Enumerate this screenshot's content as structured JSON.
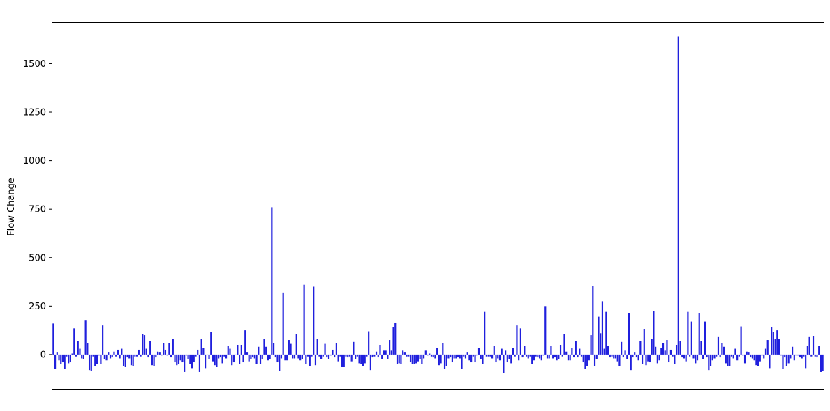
{
  "chart_data": {
    "type": "bar",
    "title": "",
    "xlabel": "",
    "ylabel": "Flow Change",
    "ylim": [
      -180,
      1710
    ],
    "yticks": [
      0,
      250,
      500,
      750,
      1000,
      1250,
      1500
    ],
    "x_ticks_visible": false,
    "grid": false,
    "bar_color": "#1f1fdd",
    "series": [
      {
        "values": [
          160,
          -75,
          10,
          -30,
          -50,
          -40,
          -75,
          -10,
          -45,
          -40,
          5,
          135,
          -10,
          70,
          30,
          -20,
          -25,
          175,
          60,
          -80,
          -85,
          -10,
          -60,
          -50,
          -5,
          -50,
          150,
          -25,
          -30,
          10,
          -20,
          -15,
          15,
          -10,
          25,
          -20,
          30,
          -60,
          -65,
          -15,
          -20,
          -55,
          -60,
          -10,
          -10,
          25,
          -10,
          105,
          100,
          30,
          -15,
          70,
          -55,
          -60,
          -15,
          15,
          10,
          -5,
          60,
          25,
          -5,
          60,
          -15,
          80,
          -40,
          -55,
          -50,
          -30,
          -40,
          -90,
          -5,
          -25,
          -50,
          -70,
          -40,
          -10,
          25,
          -90,
          80,
          35,
          -70,
          0,
          -25,
          115,
          -35,
          -55,
          -65,
          -20,
          -15,
          -45,
          -10,
          -20,
          45,
          30,
          -55,
          -40,
          0,
          50,
          -50,
          50,
          -40,
          125,
          10,
          -35,
          -25,
          -15,
          -20,
          -50,
          40,
          -50,
          -25,
          80,
          40,
          -30,
          -25,
          760,
          60,
          -15,
          -40,
          -85,
          -20,
          320,
          -30,
          -30,
          75,
          55,
          -20,
          -20,
          105,
          -20,
          -30,
          -25,
          360,
          -50,
          -10,
          -60,
          -10,
          350,
          -55,
          80,
          -10,
          -25,
          -10,
          55,
          -15,
          -25,
          -5,
          25,
          -15,
          60,
          -35,
          -10,
          -65,
          -65,
          -10,
          -15,
          -10,
          -35,
          65,
          -25,
          -10,
          -45,
          -50,
          -60,
          -45,
          -10,
          120,
          -80,
          -15,
          -10,
          15,
          -15,
          50,
          -25,
          20,
          20,
          -25,
          75,
          20,
          140,
          165,
          -50,
          -45,
          -50,
          20,
          10,
          -10,
          -10,
          -40,
          -50,
          -50,
          -45,
          -35,
          -25,
          -50,
          -20,
          20,
          -5,
          5,
          -10,
          -15,
          -20,
          35,
          -55,
          -45,
          60,
          -75,
          -60,
          -20,
          -15,
          -40,
          -20,
          -20,
          -15,
          -20,
          -75,
          -10,
          -20,
          10,
          -30,
          -40,
          -10,
          -40,
          -5,
          35,
          -25,
          -50,
          220,
          -10,
          -10,
          -10,
          -20,
          45,
          -40,
          -20,
          -30,
          30,
          -95,
          20,
          -40,
          -25,
          -45,
          35,
          -10,
          150,
          -30,
          135,
          -15,
          45,
          -10,
          -20,
          -10,
          -50,
          -30,
          -10,
          -15,
          -20,
          -30,
          -5,
          250,
          -20,
          -20,
          45,
          -20,
          -15,
          -30,
          -25,
          50,
          -10,
          105,
          15,
          -30,
          -30,
          35,
          -15,
          70,
          -15,
          30,
          -10,
          -40,
          -75,
          -60,
          -30,
          100,
          355,
          -60,
          -25,
          195,
          110,
          275,
          30,
          220,
          45,
          -15,
          -10,
          -20,
          -20,
          -35,
          -60,
          65,
          -15,
          20,
          -25,
          215,
          -80,
          -15,
          10,
          -15,
          -30,
          70,
          -50,
          130,
          -55,
          -35,
          -40,
          80,
          225,
          40,
          -45,
          -30,
          35,
          60,
          20,
          75,
          -40,
          25,
          -10,
          -50,
          50,
          1640,
          70,
          -15,
          -20,
          -35,
          220,
          -10,
          170,
          -20,
          -45,
          -30,
          215,
          70,
          -25,
          170,
          -15,
          -80,
          -60,
          -30,
          -20,
          -10,
          90,
          -15,
          60,
          40,
          -45,
          -60,
          -60,
          -10,
          -20,
          30,
          -30,
          -10,
          145,
          -5,
          -45,
          15,
          10,
          -15,
          -20,
          -30,
          -55,
          -60,
          -35,
          -5,
          -20,
          30,
          75,
          -70,
          140,
          115,
          80,
          125,
          80,
          -5,
          -75,
          -15,
          -60,
          -45,
          -20,
          40,
          -30,
          -5,
          -5,
          -15,
          -20,
          -10,
          -70,
          45,
          90,
          -10,
          95,
          -10,
          -15,
          45,
          -90,
          -85
        ]
      }
    ]
  }
}
